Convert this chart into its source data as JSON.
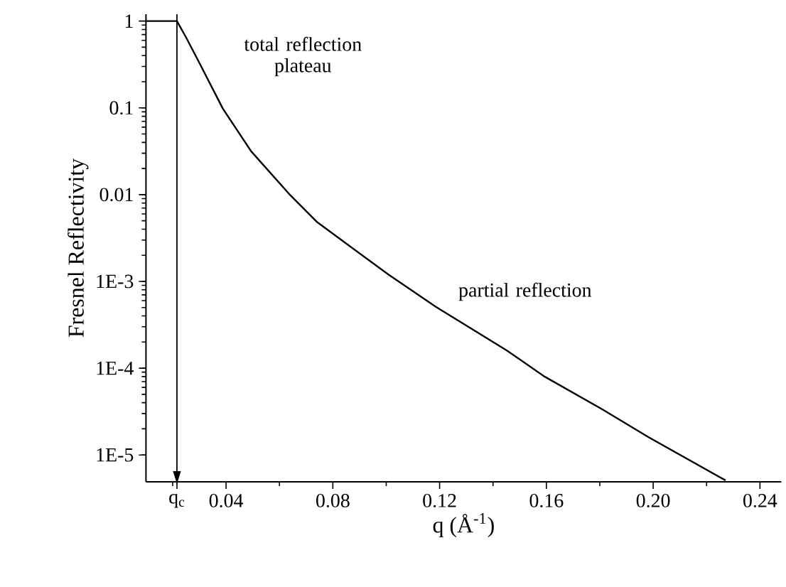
{
  "chart_data": {
    "type": "line",
    "xlabel": "q (Å$^{-1}$)",
    "ylabel": "Fresnel Reflectivity",
    "annotations": [
      "total reflection plateau",
      "partial reflection"
    ],
    "x": [
      0.01,
      0.0216,
      0.025,
      0.03,
      0.0388,
      0.0494,
      0.0636,
      0.0742,
      0.1008,
      0.1186,
      0.1452,
      0.1593,
      0.1806,
      0.1983,
      0.2271
    ],
    "series": [
      {
        "color": "#000000",
        "values": [
          1,
          1,
          0.65,
          0.33,
          0.098,
          0.0316,
          0.0102,
          0.0048,
          0.0012,
          0.00051,
          0.00016,
          8e-05,
          3.4e-05,
          1.6e-05,
          5.1e-06
        ]
      }
    ],
    "xlim": [
      0.01,
      0.248
    ],
    "ylim": [
      4.9e-06,
      1.2
    ],
    "xticks": [
      {
        "value": 0.0216,
        "label": "q$_{c}$"
      },
      0.04,
      0.08,
      0.12,
      0.16,
      {
        "value": 0.2,
        "label": "0.20"
      },
      0.24
    ],
    "yticks": [
      {
        "value": 1e-05,
        "label": "1E-5"
      },
      {
        "value": 0.0001,
        "label": "1E-4"
      },
      {
        "value": 0.001,
        "label": "1E-3"
      },
      0.01,
      0.1,
      1
    ],
    "ref_lines": [
      {
        "axis": "x",
        "value": 0.0216,
        "line_style": "solid"
      }
    ],
    "log": "y",
    "marker": "none",
    "line_style": "solid"
  }
}
